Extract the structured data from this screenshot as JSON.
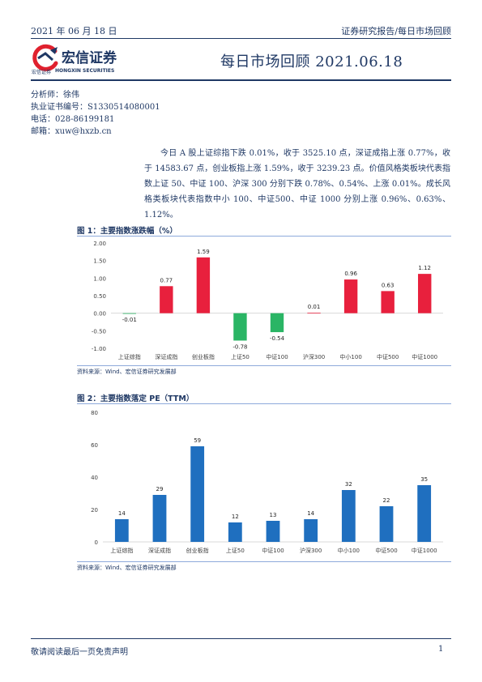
{
  "header": {
    "date": "2021 年 06 月 18 日",
    "category": "证券研究报告/每日市场回顾"
  },
  "logo": {
    "name_cn": "宏信证券",
    "name_cn_small": "宏信证券",
    "name_en": "HONGXIN SECURITIES",
    "colors": {
      "red": "#e0212e",
      "navy": "#1f3864"
    }
  },
  "report_title": "每日市场回顾 2021.06.18",
  "analyst": {
    "name": "分析师：徐伟",
    "license": "执业证书编号：S1330514080001",
    "phone": "电话：028-86199181",
    "email": "邮箱：xuw@hxzb.cn"
  },
  "summary": "今日 A 股上证综指下跌 0.01%，收于 3525.10 点，深证成指上涨 0.77%，收于 14583.67 点，创业板指上涨 1.59%，收于 3239.23 点。价值风格类板块代表指数上证 50、中证 100、沪深 300 分别下跌 0.78%、0.54%、上涨 0.01%。成长风格类板块代表指数中小 100、中证500、中证 1000 分别上涨 0.96%、0.63%、1.12%。",
  "figure1": {
    "title": "图 1：主要指数涨跌幅（%）",
    "source": "资料来源：Wind、宏信证券研究发展部"
  },
  "figure2": {
    "title": "图 2：主要指数落定 PE（TTM）",
    "source": "资料来源：Wind、宏信证券研究发展部"
  },
  "footer": {
    "note": "敬请阅读最后一页免责声明",
    "page": "1"
  },
  "chart_data": [
    {
      "type": "bar",
      "categories": [
        "上证综指",
        "深证成指",
        "创业板指",
        "上证50",
        "中证100",
        "沪深300",
        "中小100",
        "中证500",
        "中证1000"
      ],
      "values": [
        -0.01,
        0.77,
        1.59,
        -0.78,
        -0.54,
        0.01,
        0.96,
        0.63,
        1.12
      ],
      "data_labels": [
        "-0.01",
        "0.77",
        "1.59",
        "-0.78",
        "-0.54",
        "0.01",
        "0.96",
        "0.63",
        "1.12"
      ],
      "ylim": [
        -1.0,
        2.0
      ],
      "yticks": [
        "2.00",
        "1.50",
        "1.00",
        "0.50",
        "0.00",
        "-0.50",
        "-1.00"
      ],
      "ytick_values": [
        2.0,
        1.5,
        1.0,
        0.5,
        0.0,
        -0.5,
        -1.0
      ],
      "colors": {
        "up": "#e8203d",
        "down": "#2ab565"
      },
      "grid": false
    },
    {
      "type": "bar",
      "categories": [
        "上证综指",
        "深证成指",
        "创业板指",
        "上证50",
        "中证100",
        "沪深300",
        "中小100",
        "中证500",
        "中证1000"
      ],
      "values": [
        14,
        29,
        59,
        12,
        13,
        14,
        32,
        22,
        35
      ],
      "data_labels": [
        "14",
        "29",
        "59",
        "12",
        "13",
        "14",
        "32",
        "22",
        "35"
      ],
      "ylim": [
        0,
        80
      ],
      "yticks": [
        "80",
        "60",
        "40",
        "20",
        "0"
      ],
      "ytick_values": [
        80,
        60,
        40,
        20,
        0
      ],
      "colors": {
        "bar": "#1f6fbf"
      },
      "grid": false
    }
  ]
}
